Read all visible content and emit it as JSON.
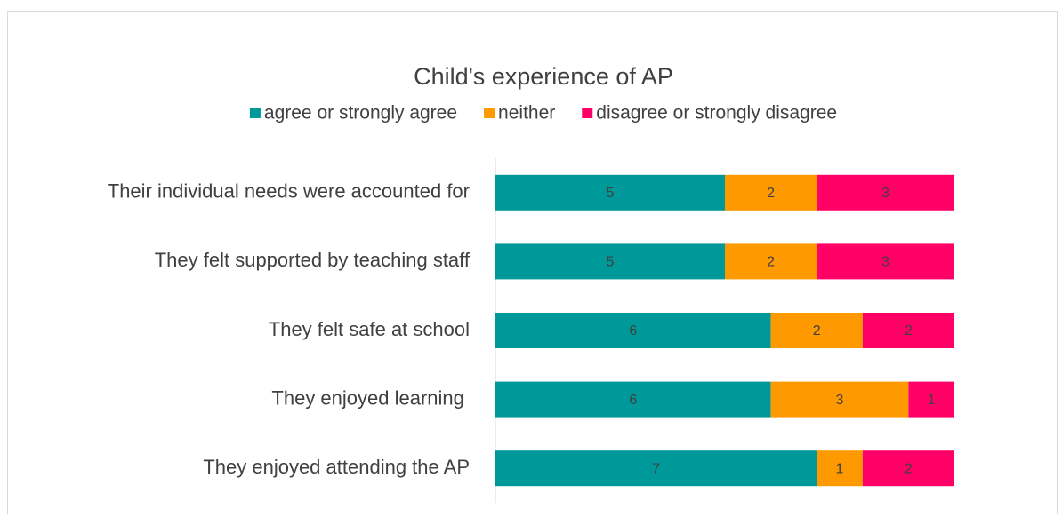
{
  "chart_data": {
    "type": "stacked-bar-horizontal",
    "title": "Child's experience of AP",
    "categories": [
      "Their individual needs were accounted for",
      "They felt supported by teaching staff",
      "They felt safe at school",
      "They enjoyed learning ",
      "They enjoyed attending the AP"
    ],
    "series": [
      {
        "name": "agree or strongly agree",
        "color": "#009999",
        "values": [
          5,
          5,
          6,
          6,
          7
        ]
      },
      {
        "name": "neither",
        "color": "#FF9900",
        "values": [
          2,
          2,
          2,
          3,
          1
        ]
      },
      {
        "name": "disagree or strongly disagree",
        "color": "#FF0066",
        "values": [
          3,
          3,
          2,
          1,
          2
        ]
      }
    ],
    "xlim": [
      0,
      10
    ],
    "legend": "top"
  }
}
